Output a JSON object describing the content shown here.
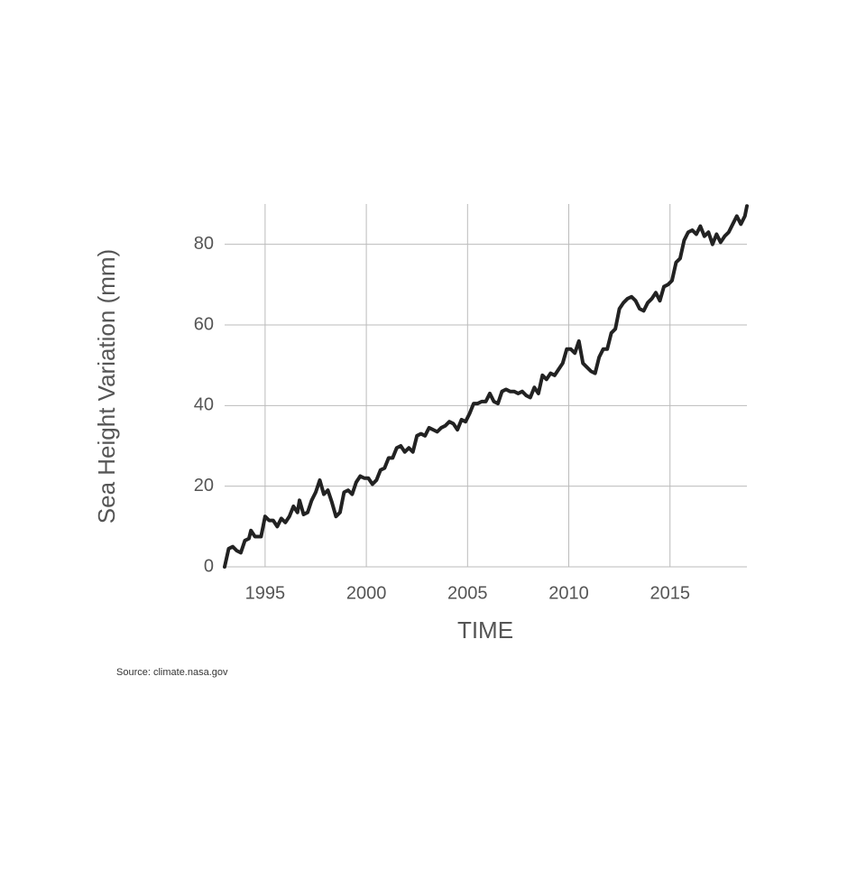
{
  "chart_data": {
    "type": "line",
    "x_label": "TIME",
    "y_label": "Sea Height Variation (mm)",
    "source": "Source: climate.nasa.gov",
    "color": "#222222",
    "grid": true,
    "xlim": [
      1993,
      2018.8
    ],
    "ylim": [
      0,
      90
    ],
    "xticks": [
      1995,
      2000,
      2005,
      2010,
      2015
    ],
    "yticks": [
      0,
      20,
      40,
      60,
      80
    ],
    "x": [
      1993.0,
      1993.2,
      1993.4,
      1993.6,
      1993.8,
      1994.0,
      1994.2,
      1994.3,
      1994.5,
      1994.8,
      1995.0,
      1995.2,
      1995.4,
      1995.6,
      1995.8,
      1996.0,
      1996.2,
      1996.4,
      1996.6,
      1996.7,
      1996.9,
      1997.1,
      1997.3,
      1997.5,
      1997.7,
      1997.9,
      1998.1,
      1998.3,
      1998.5,
      1998.7,
      1998.9,
      1999.1,
      1999.3,
      1999.5,
      1999.7,
      1999.9,
      2000.1,
      2000.3,
      2000.5,
      2000.7,
      2000.9,
      2001.1,
      2001.3,
      2001.5,
      2001.7,
      2001.9,
      2002.1,
      2002.3,
      2002.5,
      2002.7,
      2002.9,
      2003.1,
      2003.3,
      2003.5,
      2003.7,
      2003.9,
      2004.1,
      2004.3,
      2004.5,
      2004.7,
      2004.9,
      2005.1,
      2005.3,
      2005.5,
      2005.7,
      2005.9,
      2006.1,
      2006.3,
      2006.5,
      2006.7,
      2006.9,
      2007.1,
      2007.3,
      2007.5,
      2007.7,
      2007.9,
      2008.1,
      2008.3,
      2008.5,
      2008.7,
      2008.9,
      2009.1,
      2009.3,
      2009.5,
      2009.7,
      2009.9,
      2010.1,
      2010.3,
      2010.5,
      2010.7,
      2010.9,
      2011.1,
      2011.3,
      2011.5,
      2011.7,
      2011.9,
      2012.1,
      2012.3,
      2012.5,
      2012.7,
      2012.9,
      2013.1,
      2013.3,
      2013.5,
      2013.7,
      2013.9,
      2014.1,
      2014.3,
      2014.5,
      2014.7,
      2014.9,
      2015.1,
      2015.3,
      2015.5,
      2015.7,
      2015.9,
      2016.1,
      2016.3,
      2016.5,
      2016.7,
      2016.9,
      2017.1,
      2017.3,
      2017.5,
      2017.7,
      2017.9,
      2018.1,
      2018.3,
      2018.5,
      2018.7,
      2018.8
    ],
    "values": [
      0,
      4.5,
      5,
      4,
      3.5,
      6.5,
      7,
      9,
      7.5,
      7.5,
      12.5,
      11.5,
      11.5,
      10,
      12,
      11,
      12.5,
      15,
      13.5,
      16.5,
      13,
      13.5,
      16.5,
      18.5,
      21.5,
      18,
      19,
      16,
      12.5,
      13.5,
      18.5,
      19,
      18,
      21,
      22.5,
      22,
      22,
      20.5,
      21.5,
      24,
      24.5,
      27,
      27,
      29.5,
      30,
      28.5,
      29.5,
      28.5,
      32.5,
      33,
      32.5,
      34.5,
      34,
      33.5,
      34.5,
      35,
      36,
      35.5,
      34,
      36.5,
      36,
      38,
      40.5,
      40.5,
      41,
      41,
      43,
      41,
      40.5,
      43.5,
      44,
      43.5,
      43.5,
      43,
      43.5,
      42.5,
      42,
      44.5,
      43,
      47.5,
      46.5,
      48,
      47.5,
      49,
      50.5,
      54,
      54,
      53,
      56,
      50.5,
      49.5,
      48.5,
      48,
      52,
      54,
      54,
      58,
      59,
      64,
      65.5,
      66.5,
      67,
      66,
      64,
      63.5,
      65.5,
      66.5,
      68,
      66,
      69.5,
      70,
      71,
      75.5,
      76.5,
      81,
      83,
      83.5,
      82.5,
      84.5,
      82,
      83,
      80,
      82.5,
      80.5,
      82,
      83,
      85,
      87,
      85,
      87,
      89.5
    ]
  }
}
